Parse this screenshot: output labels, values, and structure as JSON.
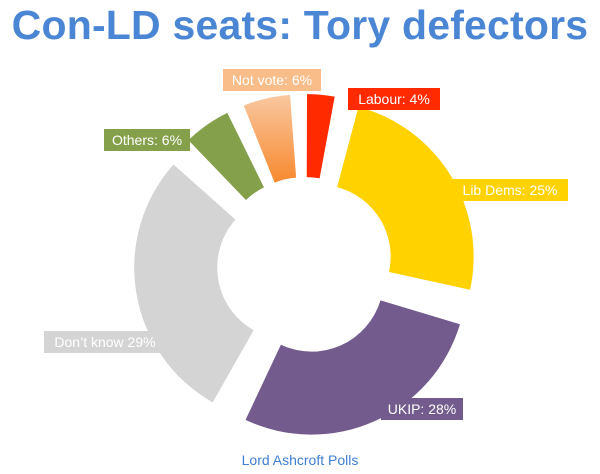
{
  "title": "Con-LD seats: Tory defectors",
  "source": "Lord Ashcroft Polls",
  "chart_data": {
    "type": "pie",
    "donut": true,
    "exploded": true,
    "title": "Con-LD seats: Tory defectors",
    "slices": [
      {
        "name": "Labour",
        "value": 4,
        "label": "Labour: 4%",
        "color": "#ff2a00"
      },
      {
        "name": "Lib Dems",
        "value": 25,
        "label": "Lib Dems: 25%",
        "color": "#ffd200"
      },
      {
        "name": "UKIP",
        "value": 28,
        "label": "UKIP: 28%",
        "color": "#735c8d"
      },
      {
        "name": "Don't know",
        "value": 29,
        "label": "Don’t know 29%",
        "color": "#d4d4d4"
      },
      {
        "name": "Others",
        "value": 6,
        "label": "Others: 6%",
        "color": "#84a04a"
      },
      {
        "name": "Not vote",
        "value": 6,
        "label": "Not vote:  6%",
        "color": "#f9bd8a"
      }
    ]
  }
}
